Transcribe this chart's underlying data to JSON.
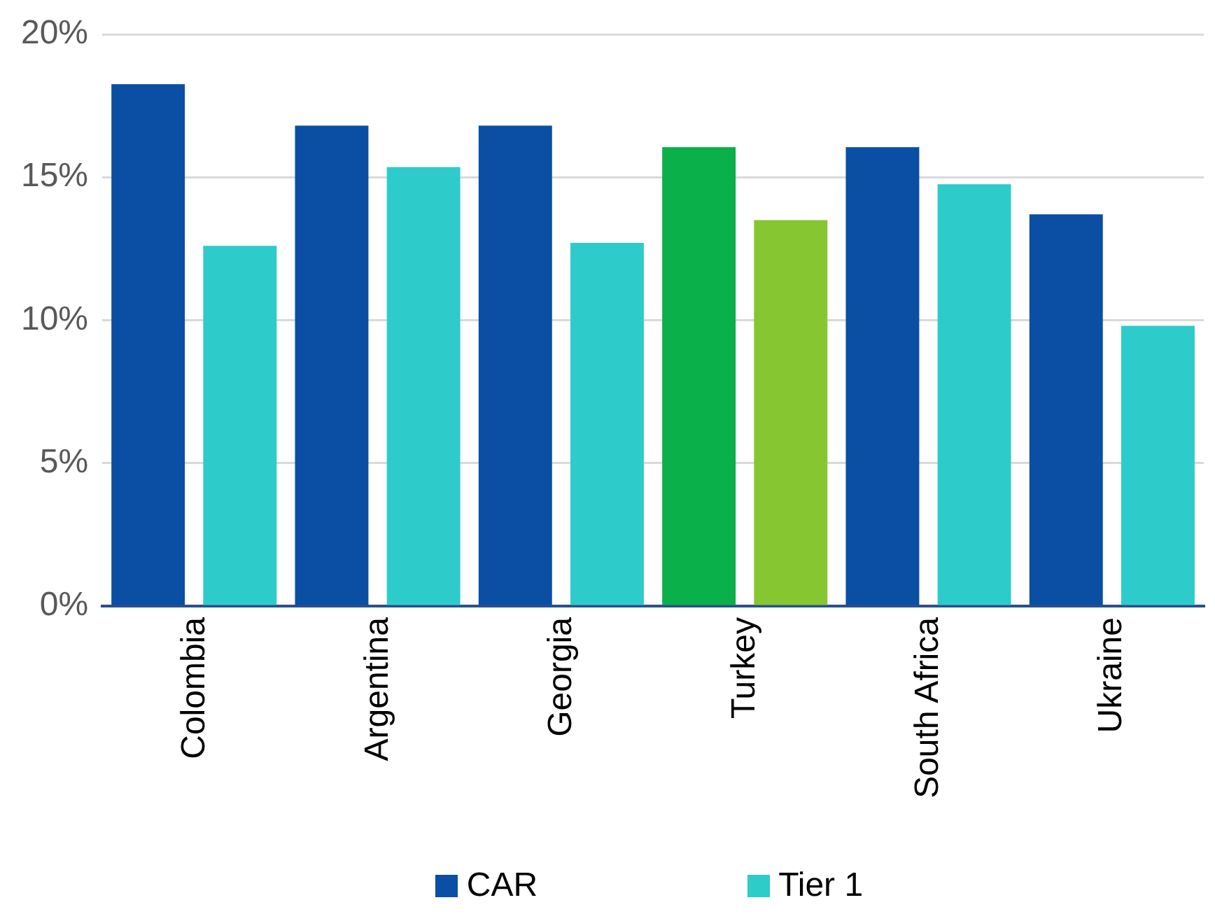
{
  "chart_data": {
    "type": "bar",
    "categories": [
      "Colombia",
      "Argentina",
      "Georgia",
      "Turkey",
      "South Africa",
      "Ukraine"
    ],
    "series": [
      {
        "name": "CAR",
        "color": "#0a4fa3",
        "colors": [
          "#0a4fa3",
          "#0a4fa3",
          "#0a4fa3",
          "#0ab04a",
          "#0a4fa3",
          "#0a4fa3"
        ],
        "values": [
          18.25,
          16.8,
          16.8,
          16.05,
          16.05,
          13.7
        ]
      },
      {
        "name": "Tier 1",
        "color": "#2ecbcb",
        "colors": [
          "#2ecbcb",
          "#2ecbcb",
          "#2ecbcb",
          "#86c630",
          "#2ecbcb",
          "#2ecbcb"
        ],
        "values": [
          12.6,
          15.35,
          12.7,
          13.5,
          14.75,
          9.8
        ]
      }
    ],
    "ylim": [
      0,
      20
    ],
    "yticks": [
      {
        "value": 0,
        "label": "0%"
      },
      {
        "value": 5,
        "label": "5%"
      },
      {
        "value": 10,
        "label": "10%"
      },
      {
        "value": 15,
        "label": "15%"
      },
      {
        "value": 20,
        "label": "20%"
      }
    ],
    "grid": "y",
    "legend": "bottom"
  }
}
